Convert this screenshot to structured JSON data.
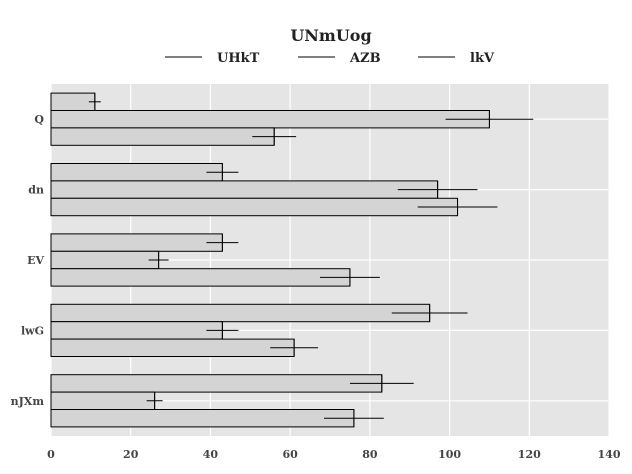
{
  "chart_data": {
    "type": "bar",
    "orientation": "horizontal",
    "title": "UNmUog",
    "xlabel": "",
    "ylabel": "",
    "categories": [
      "Q",
      "dn",
      "EV",
      "lwG",
      "nJXm"
    ],
    "series": [
      {
        "name": "UHkT",
        "values": [
          11,
          43,
          43,
          95,
          83
        ],
        "errors": [
          1.5,
          4,
          4,
          9.5,
          8
        ]
      },
      {
        "name": "AZB",
        "values": [
          110,
          97,
          27,
          43,
          26
        ],
        "errors": [
          11,
          10,
          2.5,
          4,
          2
        ]
      },
      {
        "name": "lkV",
        "values": [
          56,
          102,
          75,
          61,
          76
        ],
        "errors": [
          5.5,
          10,
          7.5,
          6,
          7.5
        ]
      }
    ],
    "xlim": [
      0,
      140
    ],
    "xticks": [
      "0",
      "20",
      "40",
      "60",
      "80",
      "100",
      "120",
      "140"
    ],
    "grid": true,
    "legend_position": "top"
  }
}
